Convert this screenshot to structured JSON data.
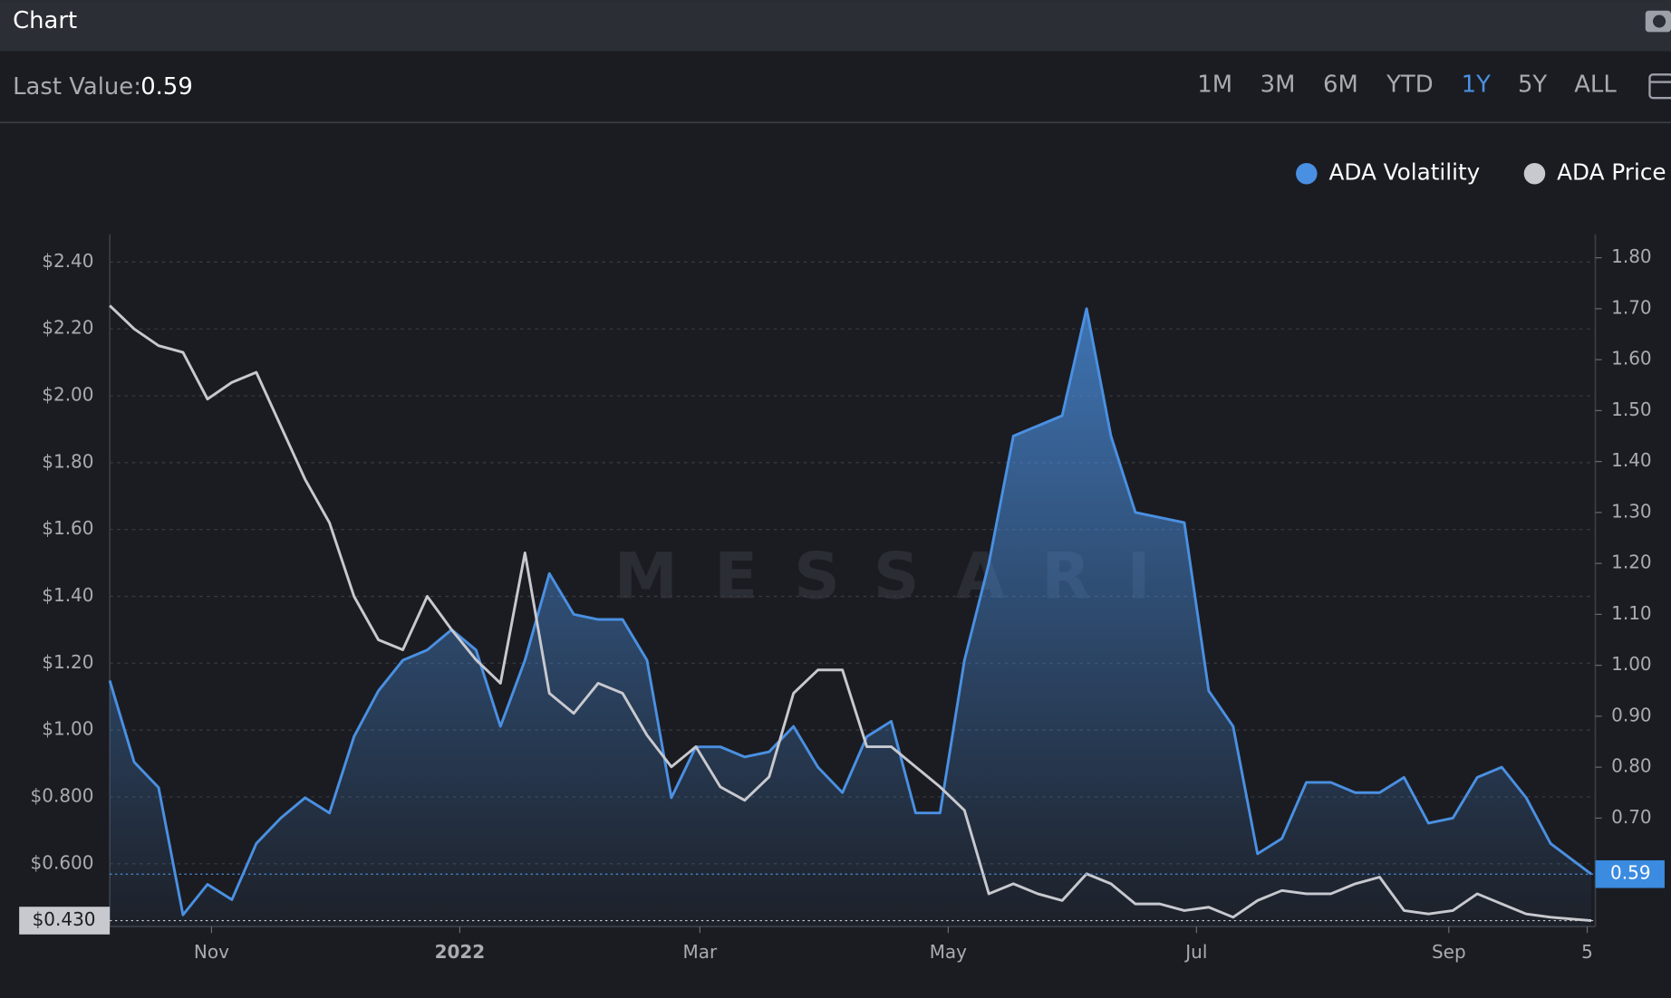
{
  "header": {
    "title": "Chart"
  },
  "toolbar": {
    "last_value_label": "Last Value:",
    "last_value": "0.59",
    "ranges": [
      "1M",
      "3M",
      "6M",
      "YTD",
      "1Y",
      "5Y",
      "ALL"
    ],
    "active_range": 4
  },
  "chart_data": {
    "type": "line",
    "watermark": "MESSARI",
    "legend": "top-right",
    "grid": true,
    "x": [
      0,
      6,
      12,
      18,
      24,
      30,
      36,
      42,
      48,
      54,
      60,
      66,
      72,
      78,
      84,
      90,
      96,
      102,
      108,
      114,
      120,
      126,
      132,
      138,
      144,
      150,
      156,
      162,
      168,
      174,
      180,
      186,
      192,
      198,
      204,
      210,
      216,
      222,
      228,
      234,
      240,
      246,
      252,
      258,
      264,
      270,
      276,
      282,
      288,
      294,
      300,
      306,
      312,
      318,
      324,
      330,
      336,
      342,
      348,
      354,
      364
    ],
    "xlim": [
      0,
      365
    ],
    "xticks": [
      {
        "value": 25,
        "label": "Nov"
      },
      {
        "value": 86,
        "label": "2022"
      },
      {
        "value": 145,
        "label": "Mar"
      },
      {
        "value": 206,
        "label": "May"
      },
      {
        "value": 267,
        "label": "Jul"
      },
      {
        "value": 329,
        "label": "Sep"
      },
      {
        "value": 363,
        "label": "5"
      }
    ],
    "ylim": [
      0.412,
      2.483
    ],
    "yticks": [
      {
        "value": 0.6,
        "label": "$0.600"
      },
      {
        "value": 0.8,
        "label": "$0.800"
      },
      {
        "value": 1.0,
        "label": "$1.00"
      },
      {
        "value": 1.2,
        "label": "$1.20"
      },
      {
        "value": 1.4,
        "label": "$1.40"
      },
      {
        "value": 1.6,
        "label": "$1.60"
      },
      {
        "value": 1.8,
        "label": "$1.80"
      },
      {
        "value": 2.0,
        "label": "$2.00"
      },
      {
        "value": 2.2,
        "label": "$2.20"
      },
      {
        "value": 2.4,
        "label": "$2.40"
      }
    ],
    "y2lim": [
      0.487,
      1.846
    ],
    "y2ticks": [
      {
        "value": 0.7,
        "label": "0.70"
      },
      {
        "value": 0.8,
        "label": "0.80"
      },
      {
        "value": 0.9,
        "label": "0.90"
      },
      {
        "value": 1.0,
        "label": "1.00"
      },
      {
        "value": 1.1,
        "label": "1.10"
      },
      {
        "value": 1.2,
        "label": "1.20"
      },
      {
        "value": 1.3,
        "label": "1.30"
      },
      {
        "value": 1.4,
        "label": "1.40"
      },
      {
        "value": 1.5,
        "label": "1.50"
      },
      {
        "value": 1.6,
        "label": "1.60"
      },
      {
        "value": 1.7,
        "label": "1.70"
      },
      {
        "value": 1.8,
        "label": "1.80"
      }
    ],
    "series": [
      {
        "name": "ADA Volatility",
        "color": "#4a90e2",
        "axis": "y2",
        "area": true,
        "values": [
          0.97,
          0.81,
          0.76,
          0.51,
          0.57,
          0.54,
          0.65,
          0.7,
          0.74,
          0.71,
          0.86,
          0.95,
          1.01,
          1.03,
          1.07,
          1.03,
          0.88,
          1.01,
          1.18,
          1.1,
          1.09,
          1.09,
          1.01,
          0.74,
          0.84,
          0.84,
          0.82,
          0.83,
          0.88,
          0.8,
          0.75,
          0.86,
          0.89,
          0.71,
          0.71,
          1.01,
          1.2,
          1.45,
          1.47,
          1.49,
          1.7,
          1.45,
          1.3,
          1.29,
          1.28,
          0.95,
          0.88,
          0.63,
          0.66,
          0.77,
          0.77,
          0.75,
          0.75,
          0.78,
          0.69,
          0.7,
          0.78,
          0.8,
          0.74,
          0.65,
          0.59
        ]
      },
      {
        "name": "ADA Price",
        "color": "#c8c9cf",
        "values": [
          2.27,
          2.2,
          2.15,
          2.13,
          1.99,
          2.04,
          2.07,
          1.91,
          1.75,
          1.62,
          1.4,
          1.27,
          1.24,
          1.4,
          1.3,
          1.21,
          1.14,
          1.53,
          1.11,
          1.05,
          1.14,
          1.11,
          0.985,
          0.89,
          0.95,
          0.83,
          0.79,
          0.86,
          1.11,
          1.18,
          1.18,
          0.95,
          0.95,
          0.89,
          0.83,
          0.76,
          0.51,
          0.54,
          0.51,
          0.49,
          0.57,
          0.54,
          0.48,
          0.48,
          0.46,
          0.47,
          0.44,
          0.49,
          0.52,
          0.51,
          0.51,
          0.54,
          0.56,
          0.46,
          0.45,
          0.46,
          0.51,
          0.48,
          0.45,
          0.44,
          0.43
        ]
      }
    ],
    "last_markers": [
      {
        "axis": "y",
        "value": 0.43,
        "label": "$0.430"
      },
      {
        "axis": "y2",
        "value": 0.59
      }
    ]
  }
}
